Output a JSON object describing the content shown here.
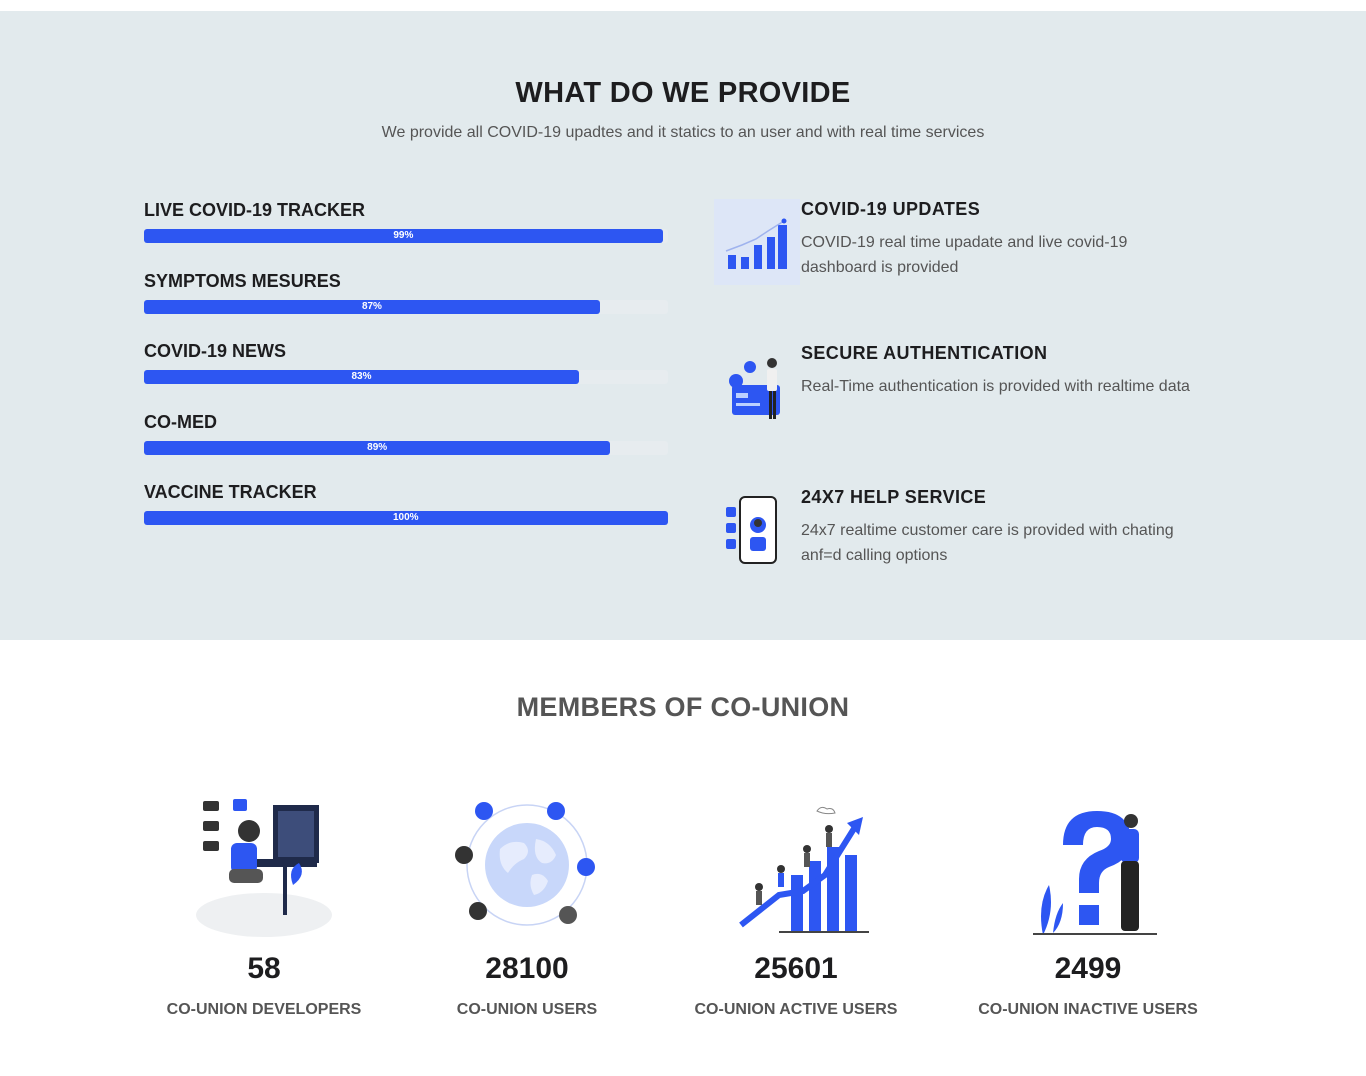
{
  "provide": {
    "title": "WHAT DO WE PROVIDE",
    "subtitle": "We provide all COVID-19 upadtes and it statics to an user and with real time services",
    "skills": [
      {
        "label": "LIVE COVID-19 TRACKER",
        "percent_text": "99%",
        "percent": 99
      },
      {
        "label": "SYMPTOMS MESURES",
        "percent_text": "87%",
        "percent": 87
      },
      {
        "label": "COVID-19 NEWS",
        "percent_text": "83%",
        "percent": 83
      },
      {
        "label": "CO-MED",
        "percent_text": "89%",
        "percent": 89
      },
      {
        "label": "VACCINE TRACKER",
        "percent_text": "100%",
        "percent": 100
      }
    ],
    "features": [
      {
        "title": "COVID-19  UPDATES",
        "desc": "COVID-19 real time upadate and live covid-19 dashboard is provided",
        "icon": "bar-chart-icon"
      },
      {
        "title": "SECURE  AUTHENTICATION",
        "desc": "Real-Time authentication is provided with realtime data",
        "icon": "credit-card-person-icon"
      },
      {
        "title": "24X7  HELP  SERVICE",
        "desc": "24x7 realtime customer care is provided with chating anf=d calling options",
        "icon": "phone-support-icon"
      }
    ]
  },
  "members": {
    "title": "MEMBERS OF CO-UNION",
    "items": [
      {
        "count": "58",
        "label": "CO-UNION DEVELOPERS",
        "icon": "developer-illustration"
      },
      {
        "count": "28100",
        "label": "CO-UNION USERS",
        "icon": "globe-users-illustration"
      },
      {
        "count": "25601",
        "label": "CO-UNION ACTIVE USERS",
        "icon": "climbing-growth-illustration"
      },
      {
        "count": "2499",
        "label": "CO-UNION INACTIVE USERS",
        "icon": "question-person-illustration"
      }
    ]
  },
  "colors": {
    "accent": "#2d56f2",
    "section_bg": "#e2eaed",
    "heading": "#1d1d1f",
    "muted": "#555555"
  }
}
